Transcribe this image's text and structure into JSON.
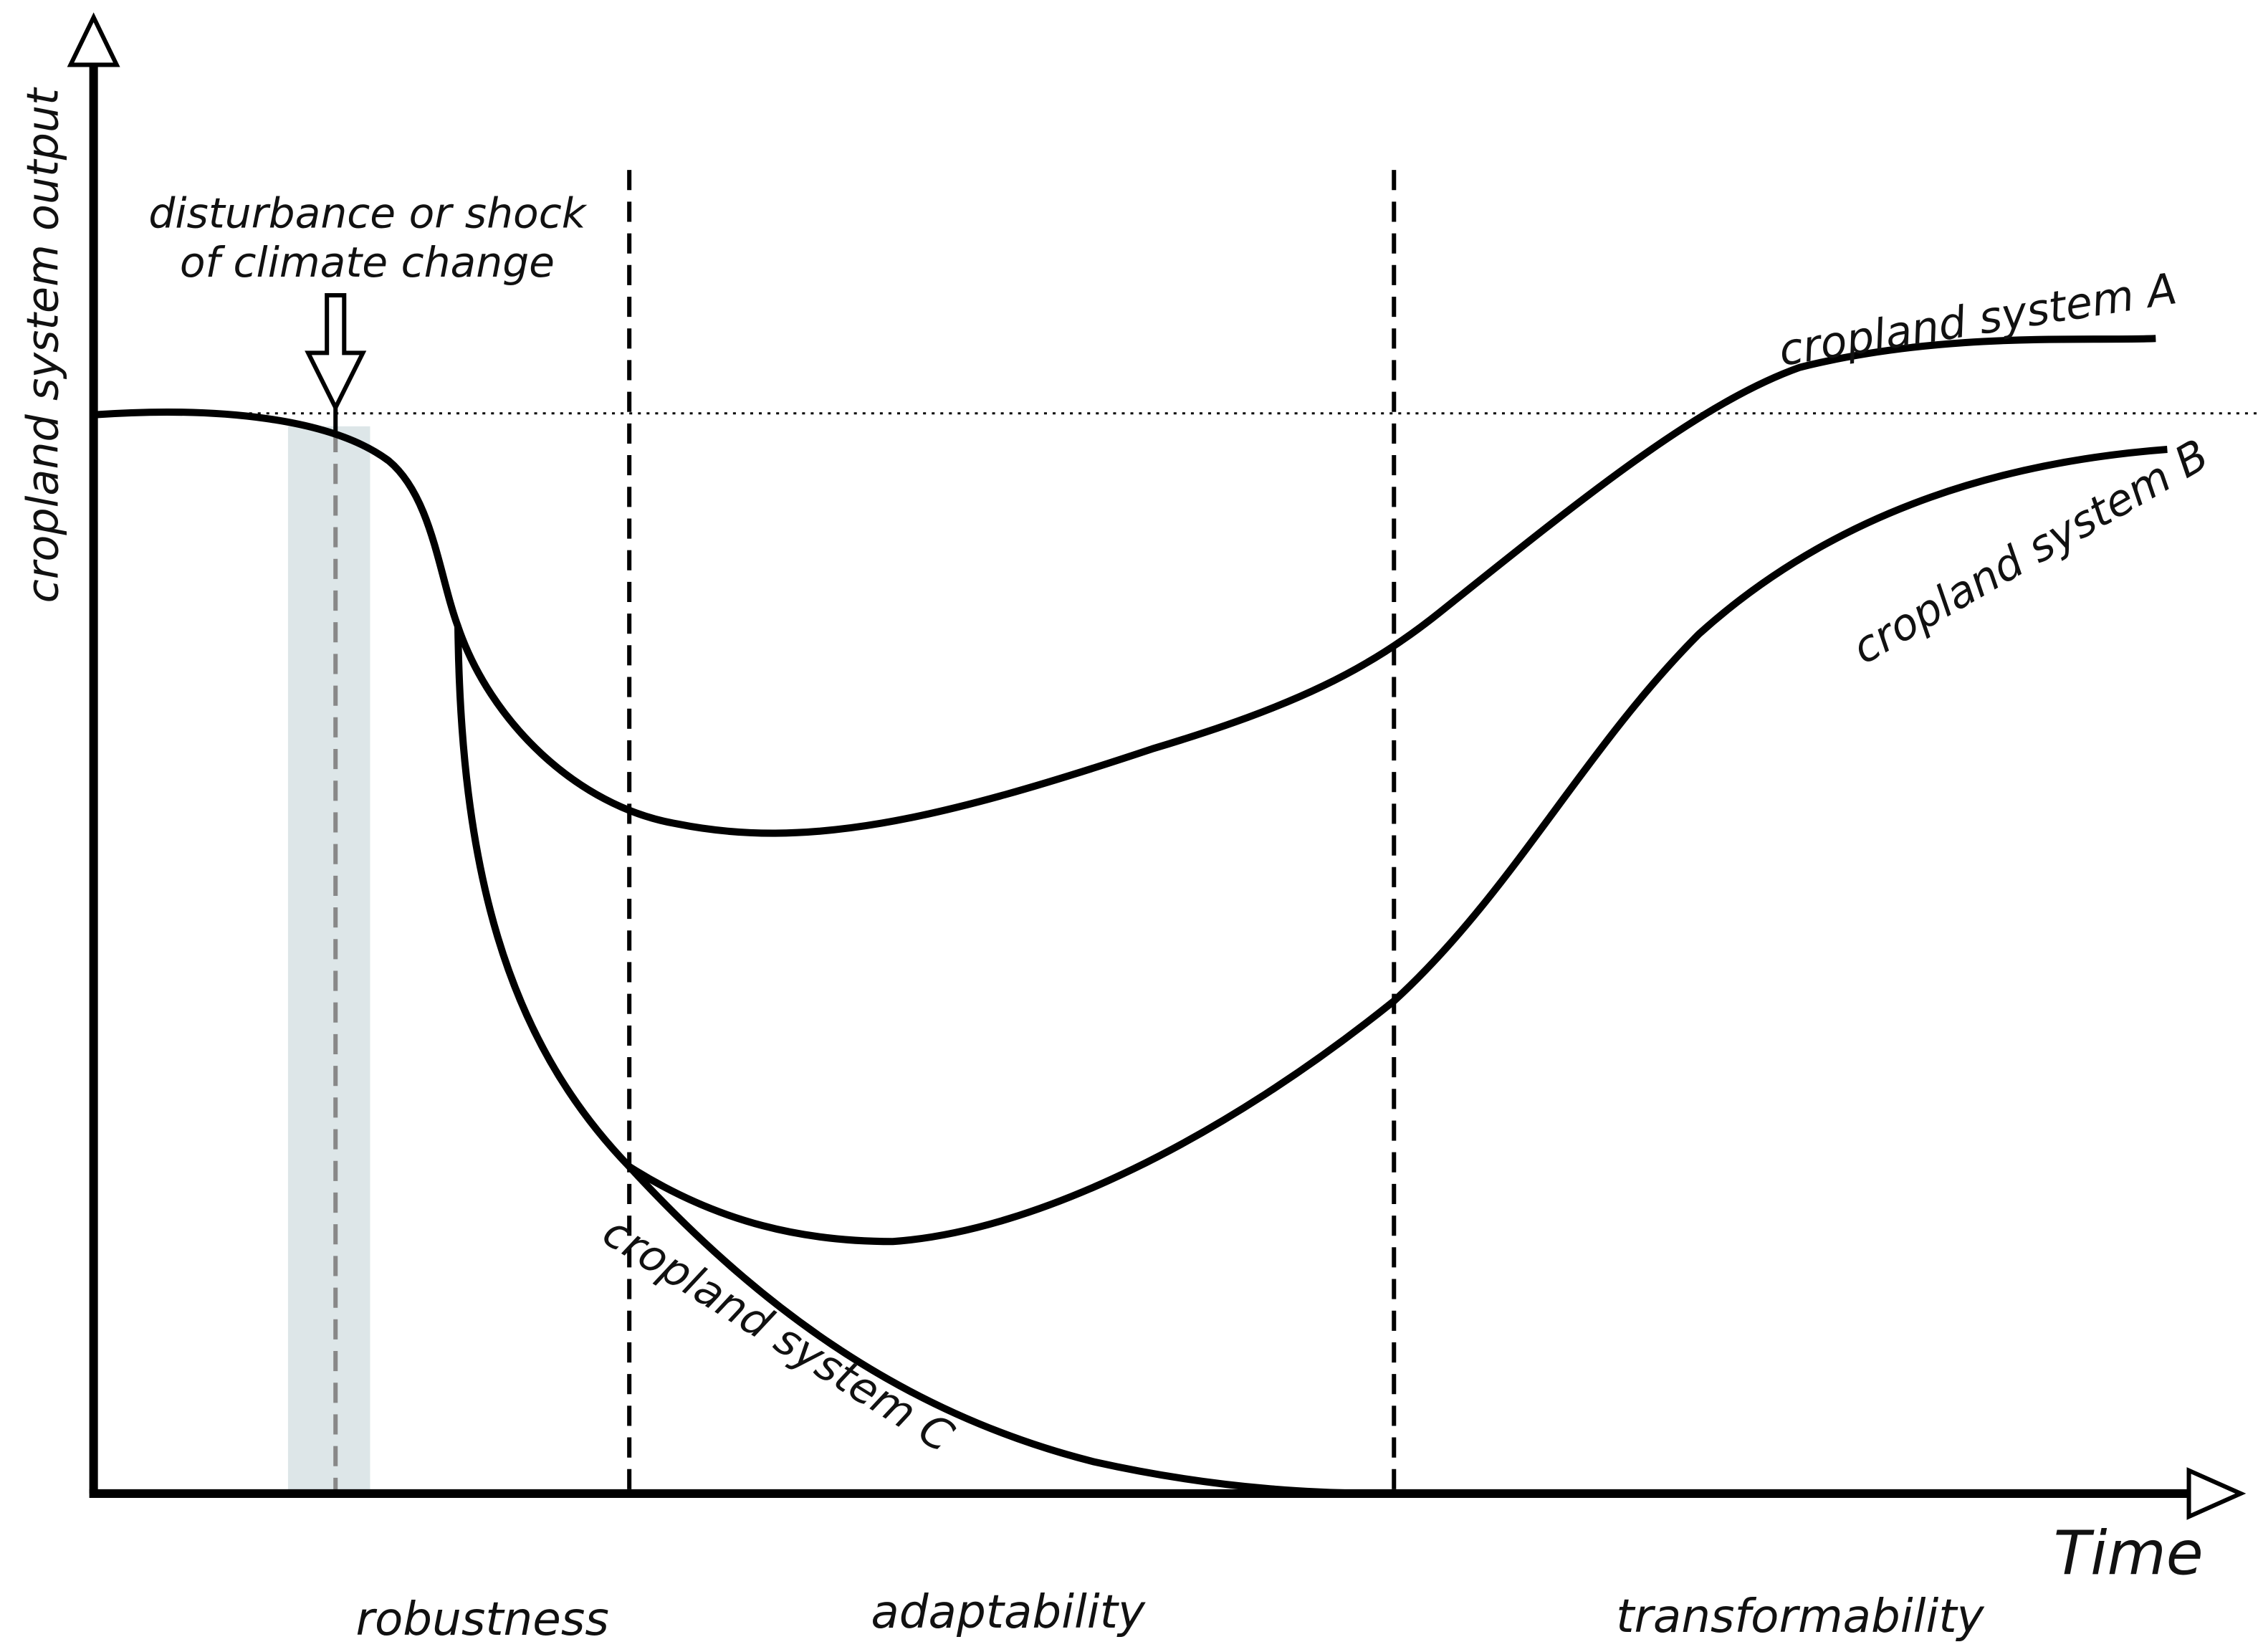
{
  "axes": {
    "y_label": "cropland system output",
    "x_label": "Time"
  },
  "annotation": {
    "lines": [
      "disturbance or shock",
      "of climate change"
    ]
  },
  "curves": [
    {
      "label": "cropland system A"
    },
    {
      "label": "cropland system B"
    },
    {
      "label": "cropland system C"
    }
  ],
  "phases": [
    "robustness",
    "adaptability",
    "transformability"
  ]
}
